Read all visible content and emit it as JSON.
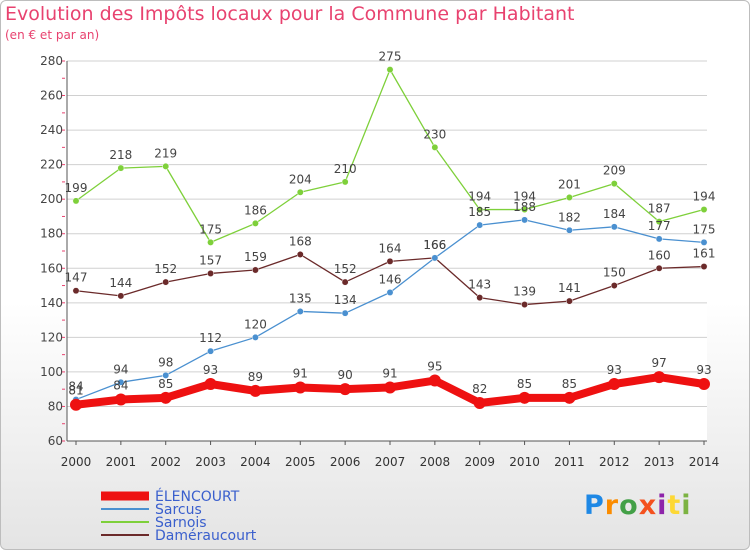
{
  "title": "Evolution des Impôts locaux pour la Commune par Habitant",
  "subtitle": "(en € et par an)",
  "logo": {
    "letters": [
      "P",
      "r",
      "o",
      "x",
      "i",
      "t",
      "i"
    ],
    "colors": [
      "#1e88e5",
      "#fb8c00",
      "#43a047",
      "#f4511e",
      "#8e24aa",
      "#fdd835",
      "#7cb342"
    ]
  },
  "colors": {
    "accent": "#e8426f",
    "grid": "#d0d0d0",
    "axis": "#555555"
  },
  "chart_data": {
    "type": "line",
    "title": "Evolution des Impôts locaux pour la Commune par Habitant",
    "subtitle": "(en € et par an)",
    "xlabel": "",
    "ylabel": "",
    "grid": true,
    "legend": "bottom-left",
    "x": [
      "2000",
      "2001",
      "2002",
      "2003",
      "2004",
      "2005",
      "2006",
      "2007",
      "2008",
      "2009",
      "2010",
      "2011",
      "2012",
      "2013",
      "2014"
    ],
    "ylim": [
      60,
      280
    ],
    "yticks": [
      60,
      80,
      100,
      120,
      140,
      160,
      180,
      200,
      220,
      240,
      260,
      280
    ],
    "series": [
      {
        "name": "ÉLENCOURT",
        "color": "#ee1111",
        "values": [
          81,
          84,
          85,
          93,
          89,
          91,
          90,
          91,
          95,
          82,
          85,
          85,
          93,
          97,
          93
        ]
      },
      {
        "name": "Sarcus",
        "color": "#4a90d0",
        "values": [
          84,
          94,
          98,
          112,
          120,
          135,
          134,
          146,
          166,
          185,
          188,
          182,
          184,
          177,
          175
        ]
      },
      {
        "name": "Sarnois",
        "color": "#7ed03a",
        "values": [
          199,
          218,
          219,
          175,
          186,
          204,
          210,
          275,
          230,
          194,
          194,
          201,
          209,
          187,
          194
        ]
      },
      {
        "name": "Daméraucourt",
        "color": "#6b2a2a",
        "values": [
          147,
          144,
          152,
          157,
          159,
          168,
          152,
          164,
          166,
          143,
          139,
          141,
          150,
          160,
          161
        ]
      }
    ]
  }
}
